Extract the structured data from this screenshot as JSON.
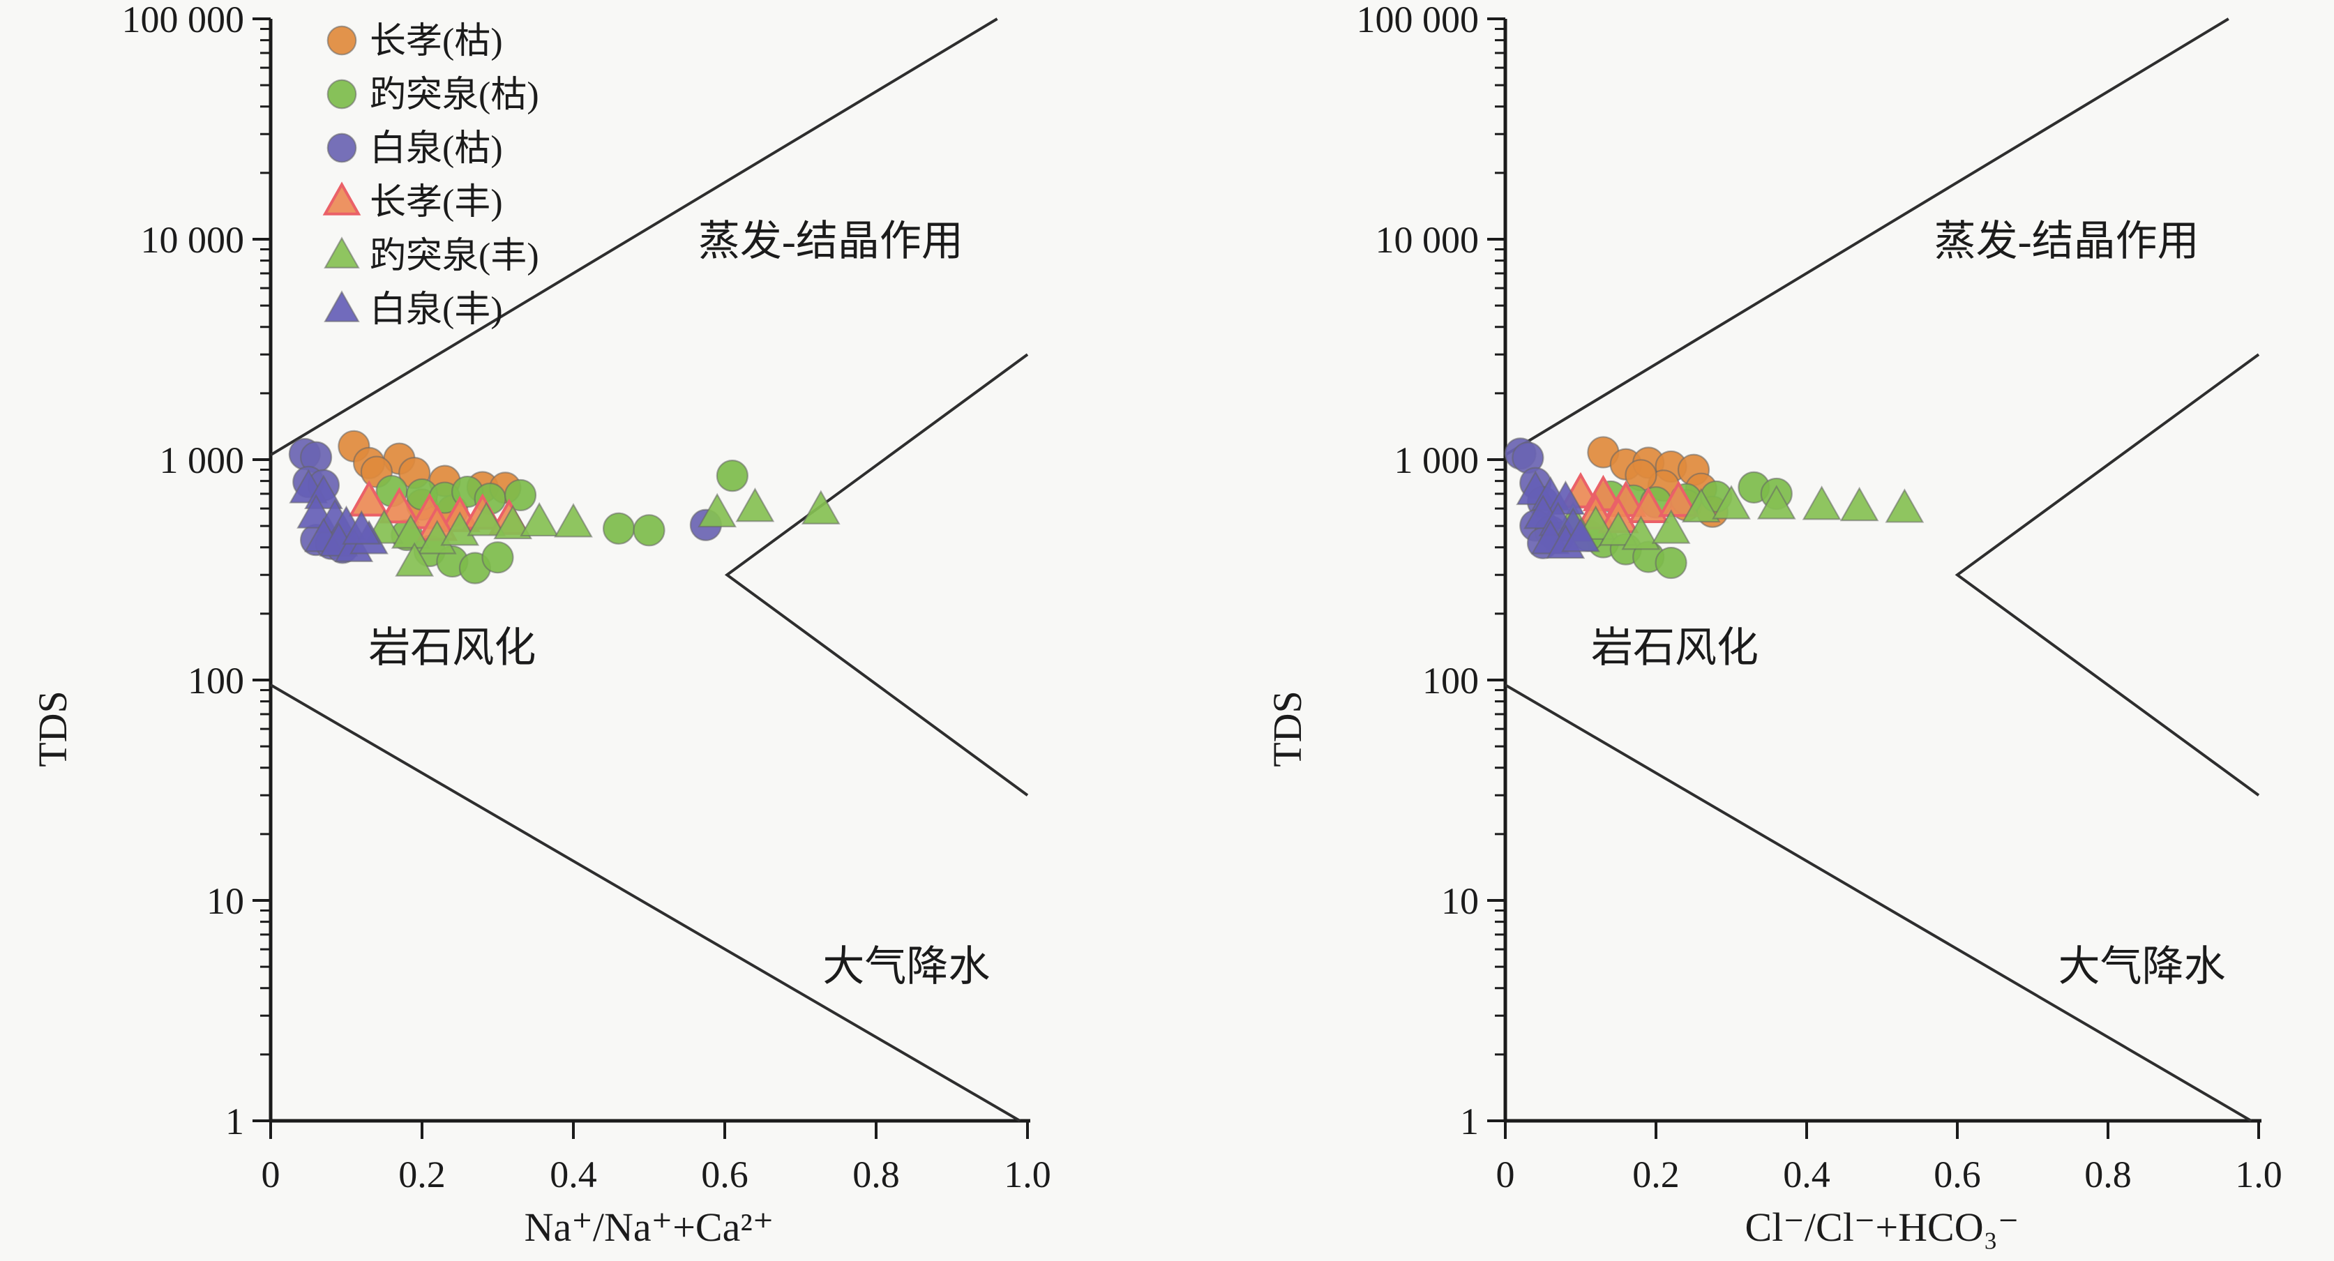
{
  "figure": {
    "background": "#f8f8f6",
    "ink_color": "#1b1b1b",
    "boundary_line_color": "#2e2e2e"
  },
  "chart_data": [
    {
      "type": "scatter",
      "panel": "left",
      "xlabel": "Na⁺/Na⁺+Ca²⁺",
      "ylabel": "TDS",
      "xlim": [
        0,
        1
      ],
      "x_ticks": [
        0,
        0.2,
        0.4,
        0.6,
        0.8,
        1.0
      ],
      "x_tick_labels": [
        "0",
        "0.2",
        "0.4",
        "0.6",
        "0.8",
        "1.0"
      ],
      "y_scale": "log",
      "ylim": [
        1,
        100000
      ],
      "y_ticks": [
        1,
        10,
        100,
        1000,
        10000,
        100000
      ],
      "y_tick_labels": [
        "1",
        "10",
        "100",
        "1 000",
        "10 000",
        "100 000"
      ],
      "grid": false,
      "has_legend": true,
      "legend_position": "upper-left",
      "annotations": [
        {
          "text": "蒸发-结晶作用",
          "x": 0.74,
          "y": 9800
        },
        {
          "text": "岩石风化",
          "x": 0.24,
          "y": 140
        },
        {
          "text": "大气降水",
          "x": 0.84,
          "y": 5.0
        }
      ],
      "boundary_lines": [
        {
          "name": "evaporation-upper-line",
          "points": [
            [
              0.0,
              1050
            ],
            [
              0.96,
              100000
            ]
          ]
        },
        {
          "name": "precipitation-lower-line",
          "points": [
            [
              0.0,
              95
            ],
            [
              0.99,
              1
            ]
          ]
        },
        {
          "name": "rock-weathering-chevron",
          "points": [
            [
              1.0,
              3000
            ],
            [
              0.603,
              300
            ],
            [
              1.0,
              30
            ]
          ]
        }
      ],
      "series": [
        {
          "name": "长孝(枯)",
          "marker": "circle",
          "color": "#e08a3c",
          "points": [
            [
              0.11,
              1150
            ],
            [
              0.13,
              965
            ],
            [
              0.17,
              1010
            ],
            [
              0.19,
              870
            ],
            [
              0.14,
              880
            ],
            [
              0.23,
              800
            ],
            [
              0.28,
              750
            ],
            [
              0.2,
              625
            ],
            [
              0.24,
              585
            ],
            [
              0.31,
              745
            ]
          ]
        },
        {
          "name": "趵突泉(枯)",
          "marker": "circle",
          "color": "#7dbc4b",
          "points": [
            [
              0.16,
              720
            ],
            [
              0.2,
              695
            ],
            [
              0.23,
              672
            ],
            [
              0.26,
              715
            ],
            [
              0.29,
              665
            ],
            [
              0.33,
              690
            ],
            [
              0.18,
              455
            ],
            [
              0.21,
              385
            ],
            [
              0.24,
              345
            ],
            [
              0.27,
              322
            ],
            [
              0.3,
              360
            ],
            [
              0.46,
              487
            ],
            [
              0.5,
              478
            ],
            [
              0.61,
              845
            ]
          ]
        },
        {
          "name": "白泉(枯)",
          "marker": "circle",
          "color": "#6a64b2",
          "points": [
            [
              0.045,
              1060
            ],
            [
              0.06,
              1025
            ],
            [
              0.05,
              792
            ],
            [
              0.07,
              765
            ],
            [
              0.06,
              432
            ],
            [
              0.08,
              415
            ],
            [
              0.095,
              398
            ],
            [
              0.575,
              505
            ]
          ]
        },
        {
          "name": "长孝(丰)",
          "marker": "triangle",
          "color": "#ec8a55",
          "edge": "#ea6168",
          "points": [
            [
              0.13,
              645
            ],
            [
              0.17,
              600
            ],
            [
              0.21,
              565
            ],
            [
              0.25,
              548
            ],
            [
              0.28,
              562
            ],
            [
              0.315,
              532
            ],
            [
              0.22,
              500
            ]
          ]
        },
        {
          "name": "趵突泉(丰)",
          "marker": "triangle",
          "color": "#85c052",
          "points": [
            [
              0.15,
              482
            ],
            [
              0.185,
              458
            ],
            [
              0.22,
              432
            ],
            [
              0.25,
              472
            ],
            [
              0.285,
              522
            ],
            [
              0.32,
              505
            ],
            [
              0.355,
              520
            ],
            [
              0.4,
              515
            ],
            [
              0.59,
              572
            ],
            [
              0.64,
              605
            ],
            [
              0.727,
              590
            ],
            [
              0.19,
              342
            ]
          ]
        },
        {
          "name": "白泉(丰)",
          "marker": "triangle",
          "color": "#655eb6",
          "points": [
            [
              0.05,
              735
            ],
            [
              0.07,
              692
            ],
            [
              0.06,
              565
            ],
            [
              0.085,
              538
            ],
            [
              0.1,
              502
            ],
            [
              0.07,
              442
            ],
            [
              0.09,
              422
            ],
            [
              0.11,
              398
            ],
            [
              0.13,
              432
            ],
            [
              0.12,
              478
            ]
          ]
        }
      ]
    },
    {
      "type": "scatter",
      "panel": "right",
      "xlabel": "Cl⁻/Cl⁻+HCO₃⁻",
      "ylabel": "TDS",
      "xlim": [
        0,
        1
      ],
      "x_ticks": [
        0,
        0.2,
        0.4,
        0.6,
        0.8,
        1.0
      ],
      "x_tick_labels": [
        "0",
        "0.2",
        "0.4",
        "0.6",
        "0.8",
        "1.0"
      ],
      "y_scale": "log",
      "ylim": [
        1,
        100000
      ],
      "y_ticks": [
        1,
        10,
        100,
        1000,
        10000,
        100000
      ],
      "y_tick_labels": [
        "1",
        "10",
        "100",
        "1 000",
        "10 000",
        "100 000"
      ],
      "grid": false,
      "has_legend": false,
      "annotations": [
        {
          "text": "蒸发-结晶作用",
          "x": 0.745,
          "y": 9800
        },
        {
          "text": "岩石风化",
          "x": 0.225,
          "y": 140
        },
        {
          "text": "大气降水",
          "x": 0.845,
          "y": 5.0
        }
      ],
      "boundary_lines": [
        {
          "name": "evaporation-upper-line",
          "points": [
            [
              0.0,
              1050
            ],
            [
              0.96,
              100000
            ]
          ]
        },
        {
          "name": "precipitation-lower-line",
          "points": [
            [
              0.0,
              95
            ],
            [
              0.99,
              1
            ]
          ]
        },
        {
          "name": "rock-weathering-chevron",
          "points": [
            [
              1.0,
              3000
            ],
            [
              0.6,
              300
            ],
            [
              1.0,
              30
            ]
          ]
        }
      ],
      "series": [
        {
          "name": "长孝(枯)",
          "marker": "circle",
          "color": "#e08a3c",
          "points": [
            [
              0.13,
              1080
            ],
            [
              0.16,
              952
            ],
            [
              0.19,
              968
            ],
            [
              0.22,
              930
            ],
            [
              0.25,
              898
            ],
            [
              0.21,
              762
            ],
            [
              0.26,
              738
            ],
            [
              0.24,
              622
            ],
            [
              0.275,
              580
            ],
            [
              0.18,
              850
            ]
          ]
        },
        {
          "name": "趵突泉(枯)",
          "marker": "circle",
          "color": "#7dbc4b",
          "points": [
            [
              0.14,
              680
            ],
            [
              0.17,
              652
            ],
            [
              0.2,
              640
            ],
            [
              0.24,
              662
            ],
            [
              0.28,
              680
            ],
            [
              0.33,
              748
            ],
            [
              0.36,
              700
            ],
            [
              0.13,
              422
            ],
            [
              0.16,
              392
            ],
            [
              0.19,
              362
            ],
            [
              0.22,
              340
            ],
            [
              0.11,
              452
            ]
          ]
        },
        {
          "name": "白泉(枯)",
          "marker": "circle",
          "color": "#6a64b2",
          "points": [
            [
              0.02,
              1065
            ],
            [
              0.03,
              1020
            ],
            [
              0.04,
              782
            ],
            [
              0.05,
              642
            ],
            [
              0.04,
              502
            ],
            [
              0.06,
              472
            ],
            [
              0.07,
              442
            ],
            [
              0.05,
              418
            ]
          ]
        },
        {
          "name": "长孝(丰)",
          "marker": "triangle",
          "color": "#ec8a55",
          "edge": "#ea6168",
          "points": [
            [
              0.1,
              702
            ],
            [
              0.13,
              682
            ],
            [
              0.16,
              642
            ],
            [
              0.19,
              602
            ],
            [
              0.23,
              642
            ],
            [
              0.12,
              562
            ],
            [
              0.15,
              542
            ]
          ]
        },
        {
          "name": "趵突泉(丰)",
          "marker": "triangle",
          "color": "#85c052",
          "points": [
            [
              0.09,
              522
            ],
            [
              0.12,
              502
            ],
            [
              0.15,
              472
            ],
            [
              0.18,
              452
            ],
            [
              0.22,
              482
            ],
            [
              0.26,
              602
            ],
            [
              0.3,
              622
            ],
            [
              0.36,
              622
            ],
            [
              0.42,
              618
            ],
            [
              0.47,
              610
            ],
            [
              0.53,
              600
            ]
          ]
        },
        {
          "name": "白泉(丰)",
          "marker": "triangle",
          "color": "#655eb6",
          "points": [
            [
              0.04,
              722
            ],
            [
              0.06,
              682
            ],
            [
              0.08,
              652
            ],
            [
              0.05,
              562
            ],
            [
              0.07,
              522
            ],
            [
              0.09,
              492
            ],
            [
              0.06,
              432
            ],
            [
              0.08,
              412
            ],
            [
              0.1,
              442
            ]
          ]
        }
      ]
    }
  ]
}
